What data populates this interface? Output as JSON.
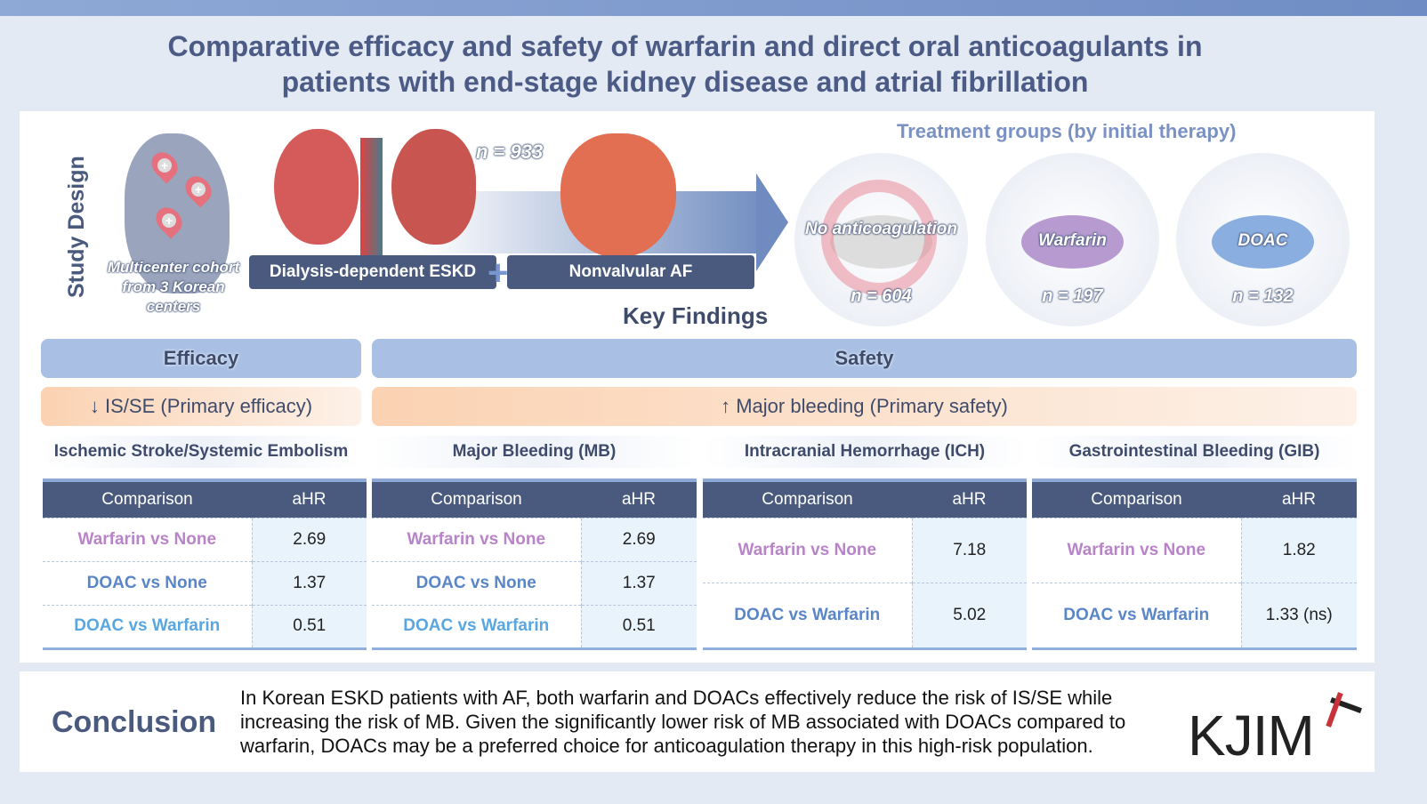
{
  "title": {
    "line1": "Comparative efficacy and safety of warfarin and direct oral anticoagulants in",
    "line2": "patients with end-stage kidney disease and atrial fibrillation"
  },
  "study_design": {
    "label": "Study Design",
    "cohort": "Multicenter cohort from 3 Korean centers",
    "n_total": "n = 933",
    "condition1": "Dialysis-dependent ESKD",
    "plus": "+",
    "condition2": "Nonvalvular AF"
  },
  "treatment_groups": {
    "heading": "Treatment groups (by initial therapy)",
    "groups": [
      {
        "label": "No anticoagulation",
        "n": "n = 604",
        "color": "#e9a3ae"
      },
      {
        "label": "Warfarin",
        "n": "n = 197",
        "color": "#b79bd0"
      },
      {
        "label": "DOAC",
        "n": "n = 132",
        "color": "#8aaee0"
      }
    ]
  },
  "key_findings": "Key Findings",
  "efficacy": {
    "label": "Efficacy",
    "summary": "↓ IS/SE (Primary efficacy)"
  },
  "safety": {
    "label": "Safety",
    "summary": "↑ Major bleeding (Primary safety)"
  },
  "tables": [
    {
      "title": "Ischemic Stroke/Systemic Embolism",
      "headers": [
        "Comparison",
        "aHR"
      ],
      "rows": [
        [
          "Warfarin vs None",
          "2.69"
        ],
        [
          "DOAC vs None",
          "1.37"
        ],
        [
          "DOAC vs Warfarin",
          "0.51"
        ]
      ]
    },
    {
      "title": "Major Bleeding (MB)",
      "headers": [
        "Comparison",
        "aHR"
      ],
      "rows": [
        [
          "Warfarin vs None",
          "2.69"
        ],
        [
          "DOAC vs None",
          "1.37"
        ],
        [
          "DOAC vs Warfarin",
          "0.51"
        ]
      ]
    },
    {
      "title": "Intracranial Hemorrhage (ICH)",
      "headers": [
        "Comparison",
        "aHR"
      ],
      "rows": [
        [
          "Warfarin vs None",
          "7.18"
        ],
        [
          "DOAC vs Warfarin",
          "5.02"
        ]
      ]
    },
    {
      "title": "Gastrointestinal Bleeding (GIB)",
      "headers": [
        "Comparison",
        "aHR"
      ],
      "rows": [
        [
          "Warfarin vs None",
          "1.82"
        ],
        [
          "DOAC vs Warfarin",
          "1.33 (ns)"
        ]
      ]
    }
  ],
  "conclusion": {
    "heading": "Conclusion",
    "text": "In Korean ESKD patients with AF, both warfarin and DOACs effectively reduce the risk of IS/SE while increasing the risk of MB. Given the significantly lower risk of MB associated with DOACs compared to warfarin, DOACs may be a preferred choice for anticoagulation therapy in this high-risk population."
  },
  "logo": "KJIM"
}
